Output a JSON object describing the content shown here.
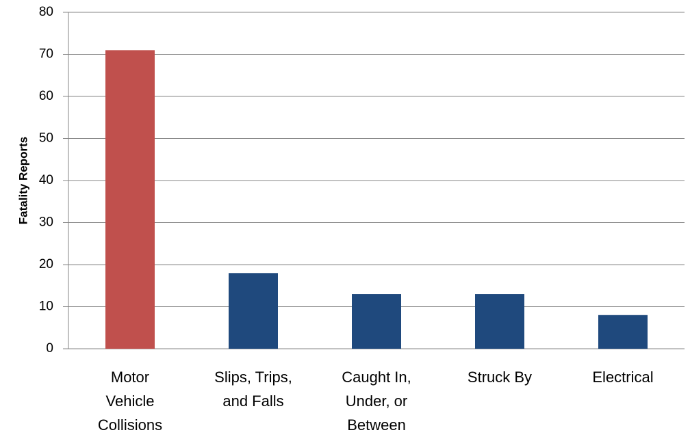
{
  "chart_data": {
    "type": "bar",
    "y_label": "Fatality Reports",
    "categories": [
      [
        "Motor",
        "Vehicle",
        "Collisions"
      ],
      [
        "Slips, Trips,",
        "and Falls"
      ],
      [
        "Caught In,",
        "Under, or",
        "Between"
      ],
      [
        "Struck By"
      ],
      [
        "Electrical"
      ]
    ],
    "values": [
      71,
      18,
      13,
      13,
      8
    ],
    "colors": [
      "#c0504d",
      "#1f497d",
      "#1f497d",
      "#1f497d",
      "#1f497d"
    ],
    "ylim": [
      0,
      80
    ],
    "yticks": [
      0,
      10,
      20,
      30,
      40,
      50,
      60,
      70,
      80
    ],
    "grid": true
  }
}
